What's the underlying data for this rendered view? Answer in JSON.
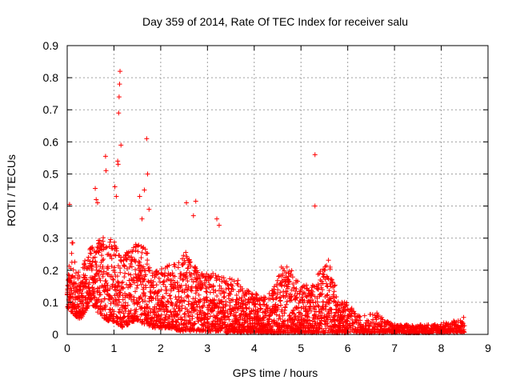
{
  "chart_data": {
    "type": "scatter",
    "title": "Day 359 of 2014, Rate Of TEC Index for receiver salu",
    "xlabel": "GPS time / hours",
    "ylabel": "ROTI / TECUs",
    "xlim": [
      0,
      9
    ],
    "ylim": [
      0,
      0.9
    ],
    "xticks": [
      "0",
      "1",
      "2",
      "3",
      "4",
      "5",
      "6",
      "7",
      "8",
      "9"
    ],
    "yticks": [
      "0",
      "0.1",
      "0.2",
      "0.3",
      "0.4",
      "0.5",
      "0.6",
      "0.7",
      "0.8",
      "0.9"
    ],
    "grid": true,
    "marker": "plus",
    "color": "#ff0000",
    "series": [
      {
        "name": "ROTI",
        "envelope_x": [
          0.0,
          0.1,
          0.2,
          0.3,
          0.5,
          0.7,
          0.8,
          0.9,
          1.0,
          1.1,
          1.2,
          1.4,
          1.5,
          1.7,
          1.8,
          2.0,
          2.2,
          2.4,
          2.5,
          2.7,
          2.8,
          3.0,
          3.2,
          3.4,
          3.6,
          3.8,
          4.0,
          4.2,
          4.4,
          4.6,
          4.8,
          5.0,
          5.2,
          5.4,
          5.6,
          5.8,
          6.0,
          6.2,
          6.4,
          6.6,
          6.8,
          7.0,
          7.5,
          8.0,
          8.2,
          8.4,
          8.5
        ],
        "envelope_max": [
          0.17,
          0.29,
          0.2,
          0.2,
          0.28,
          0.3,
          0.32,
          0.31,
          0.29,
          0.28,
          0.25,
          0.3,
          0.28,
          0.27,
          0.2,
          0.21,
          0.22,
          0.23,
          0.27,
          0.22,
          0.2,
          0.19,
          0.19,
          0.18,
          0.18,
          0.14,
          0.13,
          0.12,
          0.14,
          0.22,
          0.2,
          0.16,
          0.15,
          0.2,
          0.24,
          0.11,
          0.1,
          0.06,
          0.06,
          0.07,
          0.05,
          0.03,
          0.03,
          0.035,
          0.04,
          0.05,
          0.055
        ],
        "envelope_min": [
          0.08,
          0.07,
          0.05,
          0.05,
          0.1,
          0.06,
          0.05,
          0.04,
          0.04,
          0.03,
          0.02,
          0.04,
          0.04,
          0.03,
          0.02,
          0.02,
          0.02,
          0.01,
          0.01,
          0.01,
          0.01,
          0.01,
          0.01,
          0.005,
          0.005,
          0.005,
          0.005,
          0.005,
          0.005,
          0.005,
          0.005,
          0.005,
          0.005,
          0.005,
          0.005,
          0.005,
          0.005,
          0.005,
          0.005,
          0.005,
          0.005,
          0.005,
          0.005,
          0.005,
          0.005,
          0.005,
          0.005
        ],
        "outliers": [
          [
            0.05,
            0.405
          ],
          [
            0.12,
            0.285
          ],
          [
            0.6,
            0.455
          ],
          [
            0.62,
            0.42
          ],
          [
            0.65,
            0.41
          ],
          [
            0.82,
            0.555
          ],
          [
            0.83,
            0.51
          ],
          [
            1.02,
            0.46
          ],
          [
            1.05,
            0.43
          ],
          [
            1.08,
            0.54
          ],
          [
            1.09,
            0.53
          ],
          [
            1.1,
            0.69
          ],
          [
            1.11,
            0.74
          ],
          [
            1.12,
            0.78
          ],
          [
            1.13,
            0.82
          ],
          [
            1.15,
            0.59
          ],
          [
            1.55,
            0.43
          ],
          [
            1.6,
            0.36
          ],
          [
            1.65,
            0.45
          ],
          [
            1.7,
            0.61
          ],
          [
            1.72,
            0.5
          ],
          [
            1.75,
            0.39
          ],
          [
            2.55,
            0.41
          ],
          [
            2.75,
            0.415
          ],
          [
            2.7,
            0.37
          ],
          [
            3.2,
            0.36
          ],
          [
            3.25,
            0.34
          ],
          [
            5.3,
            0.56
          ],
          [
            5.3,
            0.4
          ]
        ]
      }
    ]
  }
}
